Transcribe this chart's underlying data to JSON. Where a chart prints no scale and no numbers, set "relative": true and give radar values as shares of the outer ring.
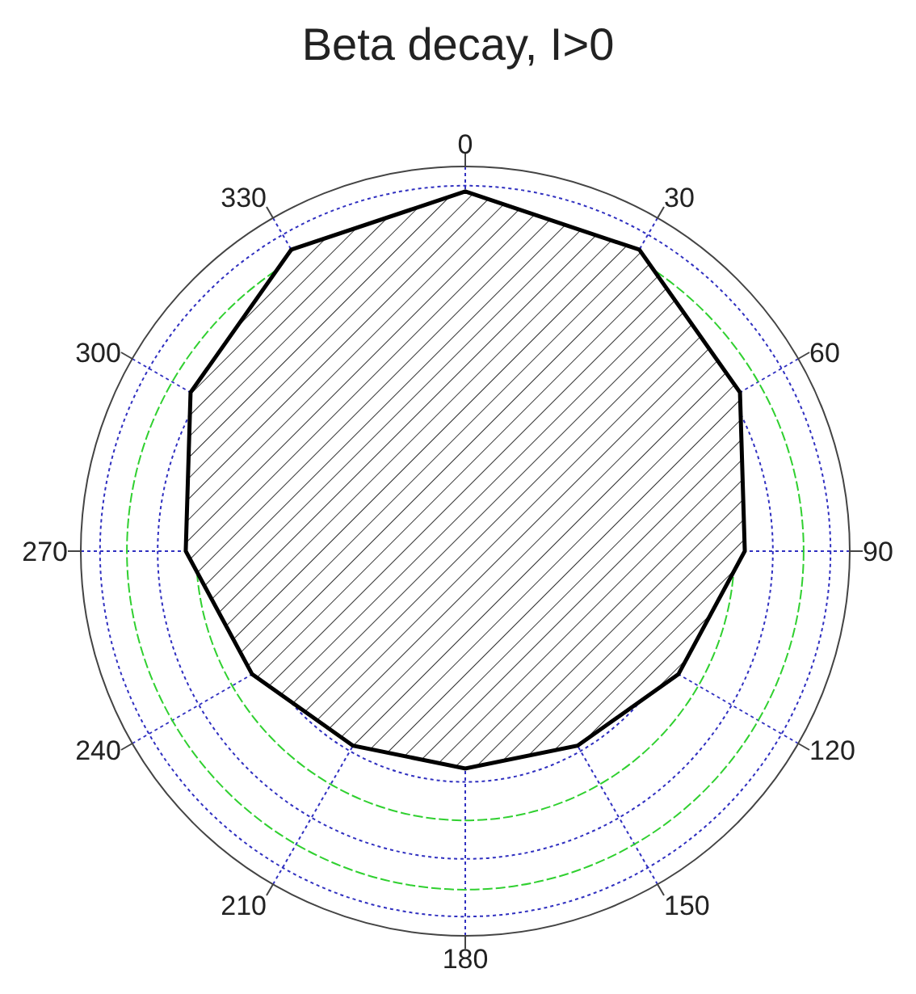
{
  "chart_data": {
    "type": "radar",
    "title": "Beta decay, I>0",
    "categories": [
      "0",
      "30",
      "60",
      "90",
      "120",
      "150",
      "180",
      "210",
      "240",
      "270",
      "300",
      "330"
    ],
    "series": [
      {
        "color": "#000000",
        "values": [
          0.935,
          0.905,
          0.825,
          0.727,
          0.64,
          0.584,
          0.565,
          0.584,
          0.64,
          0.727,
          0.825,
          0.905
        ]
      }
    ],
    "relative": true,
    "grid": true
  }
}
